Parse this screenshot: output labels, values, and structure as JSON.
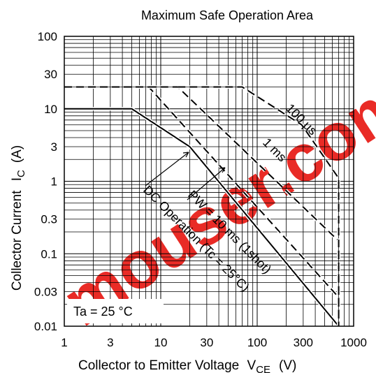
{
  "chart_data": {
    "type": "line",
    "title": "Maximum Safe Operation Area",
    "xlabel": "Collector to Emitter Voltage",
    "xlabel_symbol": "V",
    "xlabel_sub": "CE",
    "xlabel_unit": "(V)",
    "ylabel": "Collector Current",
    "ylabel_symbol": "I",
    "ylabel_sub": "C",
    "ylabel_unit": "(A)",
    "x_scale": "log",
    "y_scale": "log",
    "xlim": [
      1,
      1000
    ],
    "ylim": [
      0.01,
      100
    ],
    "grid": true,
    "x_ticks": [
      "1",
      "3",
      "10",
      "30",
      "100",
      "300",
      "1000"
    ],
    "y_ticks": [
      "100",
      "30",
      "10",
      "3",
      "1",
      "0.3",
      "0.1",
      "0.03",
      "0.01"
    ],
    "condition": "Ta = 25 °C",
    "series": [
      {
        "name": "DC Operation (Tc = 25°C)",
        "style": "solid",
        "x": [
          1,
          5,
          20,
          700,
          700
        ],
        "y": [
          10,
          10,
          3,
          0.01,
          0.01
        ]
      },
      {
        "name": "PW = 10 ms (1shot)",
        "style": "dashed",
        "x": [
          1,
          7.5,
          700,
          700
        ],
        "y": [
          20,
          20,
          0.025,
          0.01
        ]
      },
      {
        "name": "1 ms",
        "style": "dashed",
        "x": [
          7.5,
          15,
          700,
          700
        ],
        "y": [
          20,
          20,
          0.15,
          0.01
        ]
      },
      {
        "name": "100 µs",
        "style": "dashed",
        "x": [
          15,
          70,
          290,
          700,
          700
        ],
        "y": [
          20,
          20,
          6,
          1.1,
          0.01
        ]
      }
    ],
    "annotations": [
      {
        "text": "100 µs"
      },
      {
        "text": "1 ms"
      },
      {
        "text": "PW = 10 ms (1shot)"
      },
      {
        "text": "DC Operation (Tc = 25°C)"
      }
    ]
  },
  "watermark": {
    "text": "mouser.com",
    "color": "#e8201a"
  }
}
